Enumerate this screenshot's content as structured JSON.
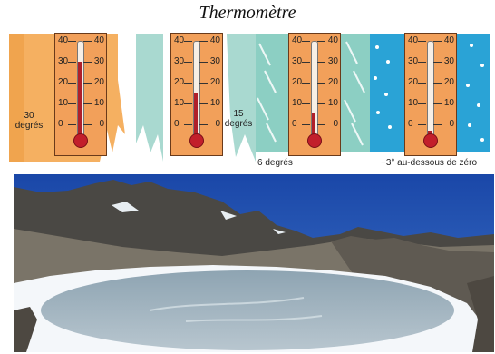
{
  "title": "Thermomètre",
  "scale_labels": [
    "40",
    "30",
    "20",
    "10",
    "0"
  ],
  "thermometers": [
    {
      "reading_degrees": 30,
      "caption": "30 degrés",
      "background": "#f5b061"
    },
    {
      "reading_degrees": 15,
      "caption": "15 degrés",
      "background": "#a9d9d0"
    },
    {
      "reading_degrees": 6,
      "caption": "6 degrés",
      "background": "#8ccfc3"
    },
    {
      "reading_degrees": -3,
      "caption": "−3° au-dessous de zéro",
      "background": "#2aa3d6"
    }
  ],
  "colors": {
    "thermometer_body": "#f2a05a",
    "mercury": "#b0202a",
    "sky": "#1f4fae",
    "ice": "#a8b8c4",
    "snow": "#f4f7fa",
    "rock": "#7a7468"
  },
  "photo": {
    "subject": "frozen-mountain-lake"
  }
}
